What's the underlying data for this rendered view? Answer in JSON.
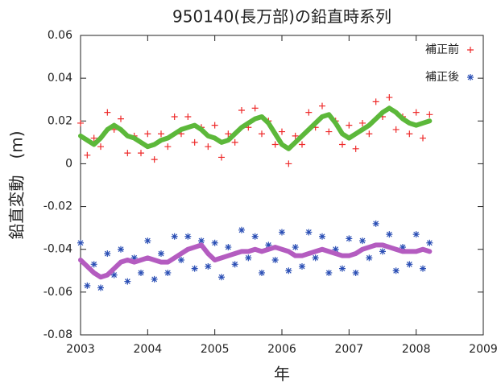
{
  "chart_data": {
    "type": "scatter",
    "title": "950140(長万部)の鉛直時系列",
    "x_label": "年",
    "y_label": "鉛直変動　(m)",
    "xlim": [
      2003,
      2009
    ],
    "xticks": [
      2003,
      2004,
      2005,
      2006,
      2007,
      2008,
      2009
    ],
    "ylim": [
      -0.08,
      0.06
    ],
    "yticks": [
      -0.08,
      -0.06,
      -0.04,
      -0.02,
      0,
      0.02,
      0.04,
      0.06
    ],
    "legend": "upper right",
    "x": [
      2003.0,
      2003.1,
      2003.2,
      2003.3,
      2003.4,
      2003.5,
      2003.6,
      2003.7,
      2003.8,
      2003.9,
      2004.0,
      2004.1,
      2004.2,
      2004.3,
      2004.4,
      2004.5,
      2004.6,
      2004.7,
      2004.8,
      2004.9,
      2005.0,
      2005.1,
      2005.2,
      2005.3,
      2005.4,
      2005.5,
      2005.6,
      2005.7,
      2005.8,
      2005.9,
      2006.0,
      2006.1,
      2006.2,
      2006.3,
      2006.4,
      2006.5,
      2006.6,
      2006.7,
      2006.8,
      2006.9,
      2007.0,
      2007.1,
      2007.2,
      2007.3,
      2007.4,
      2007.5,
      2007.6,
      2007.7,
      2007.8,
      2007.9,
      2008.0,
      2008.1,
      2008.2
    ],
    "series": [
      {
        "name": "補正前",
        "color": "#ee2a2a",
        "marker": "plus",
        "values": [
          0.019,
          0.004,
          0.012,
          0.008,
          0.024,
          0.016,
          0.021,
          0.005,
          0.013,
          0.005,
          0.014,
          0.002,
          0.014,
          0.008,
          0.022,
          0.014,
          0.022,
          0.01,
          0.017,
          0.008,
          0.018,
          0.003,
          0.014,
          0.01,
          0.025,
          0.017,
          0.026,
          0.014,
          0.02,
          0.009,
          0.015,
          0.0,
          0.013,
          0.009,
          0.024,
          0.017,
          0.027,
          0.015,
          0.02,
          0.009,
          0.018,
          0.007,
          0.019,
          0.014,
          0.029,
          0.022,
          0.031,
          0.016,
          0.022,
          0.014,
          0.024,
          0.012,
          0.023
        ]
      },
      {
        "name": "補正後",
        "color": "#2b4fb5",
        "marker": "star",
        "values": [
          -0.037,
          -0.057,
          -0.047,
          -0.058,
          -0.042,
          -0.052,
          -0.04,
          -0.055,
          -0.044,
          -0.051,
          -0.036,
          -0.054,
          -0.042,
          -0.051,
          -0.034,
          -0.045,
          -0.034,
          -0.049,
          -0.036,
          -0.048,
          -0.037,
          -0.053,
          -0.039,
          -0.047,
          -0.031,
          -0.044,
          -0.034,
          -0.051,
          -0.038,
          -0.045,
          -0.032,
          -0.05,
          -0.039,
          -0.048,
          -0.032,
          -0.044,
          -0.034,
          -0.051,
          -0.04,
          -0.049,
          -0.035,
          -0.051,
          -0.036,
          -0.044,
          -0.028,
          -0.041,
          -0.033,
          -0.05,
          -0.039,
          -0.047,
          -0.033,
          -0.049,
          -0.037
        ]
      },
      {
        "color": "#5cb83a",
        "marker": "band",
        "values": [
          0.013,
          0.011,
          0.009,
          0.012,
          0.016,
          0.018,
          0.016,
          0.013,
          0.012,
          0.01,
          0.008,
          0.009,
          0.011,
          0.012,
          0.014,
          0.016,
          0.017,
          0.018,
          0.016,
          0.013,
          0.012,
          0.01,
          0.011,
          0.014,
          0.017,
          0.019,
          0.021,
          0.022,
          0.019,
          0.014,
          0.009,
          0.007,
          0.01,
          0.013,
          0.016,
          0.019,
          0.022,
          0.023,
          0.019,
          0.014,
          0.012,
          0.014,
          0.016,
          0.018,
          0.021,
          0.024,
          0.026,
          0.024,
          0.021,
          0.019,
          0.018,
          0.019,
          0.02
        ]
      },
      {
        "color": "#b45cc0",
        "marker": "band",
        "values": [
          -0.045,
          -0.048,
          -0.051,
          -0.053,
          -0.052,
          -0.049,
          -0.046,
          -0.045,
          -0.046,
          -0.045,
          -0.044,
          -0.045,
          -0.046,
          -0.046,
          -0.044,
          -0.042,
          -0.04,
          -0.039,
          -0.038,
          -0.042,
          -0.045,
          -0.044,
          -0.043,
          -0.042,
          -0.041,
          -0.041,
          -0.04,
          -0.041,
          -0.04,
          -0.039,
          -0.04,
          -0.041,
          -0.043,
          -0.043,
          -0.042,
          -0.041,
          -0.04,
          -0.041,
          -0.042,
          -0.043,
          -0.043,
          -0.042,
          -0.04,
          -0.039,
          -0.038,
          -0.038,
          -0.039,
          -0.04,
          -0.041,
          -0.041,
          -0.041,
          -0.04,
          -0.041
        ]
      }
    ]
  }
}
